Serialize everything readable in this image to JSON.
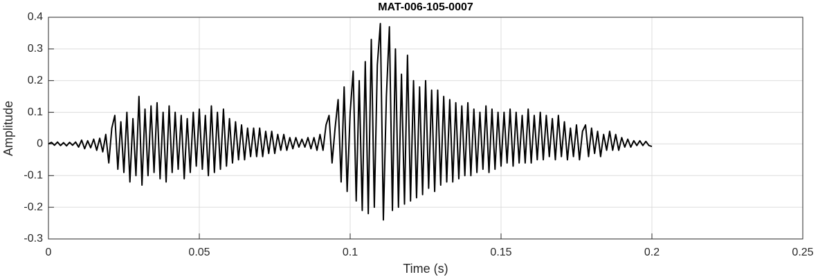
{
  "chart_data": {
    "type": "line",
    "title": "MAT-006-105-0007",
    "xlabel": "Time (s)",
    "ylabel": "Amplitude",
    "x": [
      0,
      0.001,
      0.002,
      0.003,
      0.004,
      0.005,
      0.006,
      0.007,
      0.008,
      0.009,
      0.01,
      0.011,
      0.012,
      0.013,
      0.014,
      0.015,
      0.016,
      0.017,
      0.018,
      0.019,
      0.02,
      0.021,
      0.022,
      0.023,
      0.024,
      0.025,
      0.026,
      0.027,
      0.028,
      0.029,
      0.03,
      0.031,
      0.032,
      0.033,
      0.034,
      0.035,
      0.036,
      0.037,
      0.038,
      0.039,
      0.04,
      0.041,
      0.042,
      0.043,
      0.044,
      0.045,
      0.046,
      0.047,
      0.048,
      0.049,
      0.05,
      0.051,
      0.052,
      0.053,
      0.054,
      0.055,
      0.056,
      0.057,
      0.058,
      0.059,
      0.06,
      0.061,
      0.062,
      0.063,
      0.064,
      0.065,
      0.066,
      0.067,
      0.068,
      0.069,
      0.07,
      0.071,
      0.072,
      0.073,
      0.074,
      0.075,
      0.076,
      0.077,
      0.078,
      0.079,
      0.08,
      0.081,
      0.082,
      0.083,
      0.084,
      0.085,
      0.086,
      0.087,
      0.088,
      0.089,
      0.09,
      0.091,
      0.092,
      0.093,
      0.094,
      0.095,
      0.096,
      0.097,
      0.098,
      0.099,
      0.1,
      0.101,
      0.102,
      0.103,
      0.104,
      0.105,
      0.106,
      0.107,
      0.108,
      0.109,
      0.11,
      0.111,
      0.112,
      0.113,
      0.114,
      0.115,
      0.116,
      0.117,
      0.118,
      0.119,
      0.12,
      0.121,
      0.122,
      0.123,
      0.124,
      0.125,
      0.126,
      0.127,
      0.128,
      0.129,
      0.13,
      0.131,
      0.132,
      0.133,
      0.134,
      0.135,
      0.136,
      0.137,
      0.138,
      0.139,
      0.14,
      0.141,
      0.142,
      0.143,
      0.144,
      0.145,
      0.146,
      0.147,
      0.148,
      0.149,
      0.15,
      0.151,
      0.152,
      0.153,
      0.154,
      0.155,
      0.156,
      0.157,
      0.158,
      0.159,
      0.16,
      0.161,
      0.162,
      0.163,
      0.164,
      0.165,
      0.166,
      0.167,
      0.168,
      0.169,
      0.17,
      0.171,
      0.172,
      0.173,
      0.174,
      0.175,
      0.176,
      0.177,
      0.178,
      0.179,
      0.18,
      0.181,
      0.182,
      0.183,
      0.184,
      0.185,
      0.186,
      0.187,
      0.188,
      0.189,
      0.19,
      0.191,
      0.192,
      0.193,
      0.194,
      0.195,
      0.196,
      0.197,
      0.198,
      0.199,
      0.2
    ],
    "series": [
      {
        "color": "#000000",
        "values": [
          0,
          0.005,
          -0.004,
          0.006,
          -0.005,
          0.004,
          -0.006,
          0.005,
          -0.004,
          0.006,
          -0.01,
          0.012,
          -0.015,
          0.01,
          -0.012,
          0.015,
          -0.02,
          0.018,
          -0.025,
          0.03,
          -0.06,
          0.05,
          0.09,
          -0.08,
          0.07,
          -0.09,
          0.1,
          -0.12,
          0.08,
          -0.1,
          0.15,
          -0.13,
          0.11,
          -0.1,
          0.12,
          -0.09,
          0.13,
          -0.11,
          0.1,
          -0.12,
          0.12,
          -0.09,
          0.1,
          -0.08,
          0.09,
          -0.11,
          0.08,
          -0.09,
          0.1,
          -0.07,
          0.11,
          -0.08,
          0.09,
          -0.1,
          0.12,
          -0.09,
          0.1,
          -0.08,
          0.11,
          -0.07,
          0.08,
          -0.06,
          0.07,
          -0.05,
          0.06,
          -0.05,
          0.05,
          -0.04,
          0.05,
          -0.04,
          0.05,
          -0.04,
          0.04,
          -0.03,
          0.04,
          -0.03,
          0.03,
          -0.02,
          0.03,
          -0.02,
          0.02,
          -0.015,
          0.02,
          -0.01,
          0.015,
          -0.01,
          0.02,
          -0.015,
          0.02,
          -0.02,
          0.03,
          -0.02,
          0.06,
          0.09,
          -0.06,
          0.05,
          0.14,
          -0.12,
          0.18,
          -0.15,
          0.1,
          0.23,
          -0.18,
          0.2,
          -0.21,
          0.26,
          -0.22,
          0.33,
          -0.2,
          0.25,
          0.38,
          -0.24,
          0.15,
          0.37,
          -0.21,
          0.3,
          -0.2,
          0.22,
          -0.19,
          0.28,
          -0.18,
          0.2,
          -0.17,
          0.18,
          -0.16,
          0.2,
          -0.14,
          0.17,
          -0.15,
          0.17,
          -0.13,
          0.15,
          -0.12,
          0.14,
          -0.12,
          0.13,
          -0.11,
          0.12,
          -0.1,
          0.13,
          -0.1,
          0.11,
          -0.09,
          0.1,
          -0.08,
          0.12,
          -0.09,
          0.11,
          -0.08,
          0.1,
          -0.07,
          0.1,
          -0.06,
          0.11,
          -0.07,
          0.1,
          -0.06,
          0.09,
          -0.06,
          0.11,
          -0.06,
          0.09,
          -0.05,
          0.1,
          -0.05,
          0.09,
          -0.04,
          0.08,
          -0.05,
          0.09,
          -0.04,
          0.07,
          -0.05,
          0.05,
          -0.04,
          0.06,
          -0.05,
          0.04,
          0.06,
          -0.04,
          0.05,
          -0.03,
          0.04,
          -0.04,
          0.03,
          -0.02,
          0.04,
          -0.02,
          0.03,
          -0.02,
          0.02,
          -0.01,
          0.015,
          -0.01,
          0.01,
          -0.005,
          0.01,
          -0.005,
          0.008,
          -0.005,
          -0.008
        ]
      }
    ],
    "xlim": [
      0,
      0.25
    ],
    "xticks": [
      0,
      0.05,
      0.1,
      0.15,
      0.2,
      0.25
    ],
    "ylim": [
      -0.3,
      0.4
    ],
    "yticks": [
      -0.3,
      -0.2,
      -0.1,
      0,
      0.1,
      0.2,
      0.3,
      0.4
    ],
    "grid": true
  }
}
